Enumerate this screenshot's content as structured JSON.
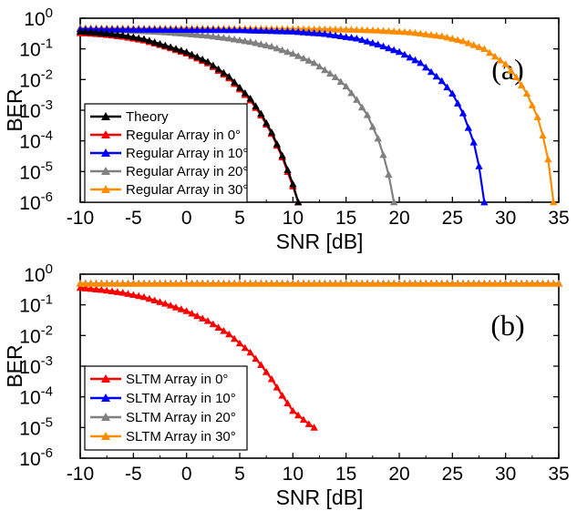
{
  "chart_data": [
    {
      "type": "line",
      "panel_label": "(a)",
      "xlabel": "SNR [dB]",
      "ylabel": "BER",
      "xlim": [
        -10,
        35
      ],
      "ylim": [
        1e-06,
        1
      ],
      "yscale": "log",
      "x_ticks": [
        "-10",
        "-5",
        "0",
        "5",
        "10",
        "15",
        "20",
        "25",
        "30",
        "35"
      ],
      "y_ticks": [
        {
          "base": "10",
          "exp": "0"
        },
        {
          "base": "10",
          "exp": "-1"
        },
        {
          "base": "10",
          "exp": "-2"
        },
        {
          "base": "10",
          "exp": "-3"
        },
        {
          "base": "10",
          "exp": "-4"
        },
        {
          "base": "10",
          "exp": "-5"
        },
        {
          "base": "10",
          "exp": "-6"
        }
      ],
      "legend_position": "bottom-left",
      "grid": false,
      "series": [
        {
          "name": "Theory",
          "color": "#000000",
          "x": [
            -10,
            -8,
            -6,
            -4,
            -2,
            0,
            2,
            4,
            6,
            7,
            8,
            9,
            10,
            10.5
          ],
          "y": [
            0.37,
            0.33,
            0.28,
            0.21,
            0.13,
            0.079,
            0.038,
            0.0125,
            0.0024,
            0.00077,
            0.00019,
            3.3e-05,
            3.9e-06,
            1e-06
          ]
        },
        {
          "name": "Regular Array in 0°",
          "color": "#ff0000",
          "x": [
            -10,
            -8,
            -6,
            -4,
            -2,
            0,
            2,
            4,
            6,
            7,
            8,
            9,
            10,
            10.5
          ],
          "y": [
            0.33,
            0.3,
            0.25,
            0.19,
            0.12,
            0.071,
            0.034,
            0.011,
            0.0021,
            0.00068,
            0.00017,
            2.9e-05,
            3.3e-06,
            1e-06
          ]
        },
        {
          "name": "Regular Array in 10°",
          "color": "#0000ff",
          "x": [
            -10,
            -5,
            0,
            5,
            10,
            13,
            16,
            18,
            20,
            22,
            24,
            25,
            26,
            27,
            27.5,
            28
          ],
          "y": [
            0.44,
            0.43,
            0.42,
            0.41,
            0.37,
            0.31,
            0.22,
            0.14,
            0.08,
            0.035,
            0.009,
            0.0035,
            0.0008,
            9e-05,
            1.5e-05,
            1e-06
          ]
        },
        {
          "name": "Regular Array in 20°",
          "color": "#808080",
          "x": [
            -10,
            -8,
            -6,
            -4,
            -2,
            0,
            2,
            4,
            6,
            8,
            10,
            12,
            14,
            15,
            16,
            17,
            18,
            18.5,
            19,
            19.5
          ],
          "y": [
            0.45,
            0.43,
            0.41,
            0.38,
            0.35,
            0.31,
            0.27,
            0.22,
            0.17,
            0.12,
            0.07,
            0.035,
            0.012,
            0.006,
            0.0022,
            0.0007,
            0.00012,
            3.5e-05,
            8e-06,
            1e-06
          ]
        },
        {
          "name": "Regular Array in 30°",
          "color": "#ff8c00",
          "x": [
            -10,
            -5,
            0,
            5,
            10,
            15,
            18,
            21,
            24,
            26,
            28,
            30,
            31,
            32,
            33,
            33.5,
            34,
            34.5
          ],
          "y": [
            0.48,
            0.47,
            0.47,
            0.46,
            0.45,
            0.43,
            0.4,
            0.35,
            0.26,
            0.18,
            0.1,
            0.032,
            0.012,
            0.0035,
            0.0006,
            0.00015,
            2.5e-05,
            1e-06
          ]
        }
      ]
    },
    {
      "type": "line",
      "panel_label": "(b)",
      "xlabel": "SNR [dB]",
      "ylabel": "BER",
      "xlim": [
        -10,
        35
      ],
      "ylim": [
        1e-06,
        1
      ],
      "yscale": "log",
      "x_ticks": [
        "-10",
        "-5",
        "0",
        "5",
        "10",
        "15",
        "20",
        "25",
        "30",
        "35"
      ],
      "y_ticks": [
        {
          "base": "10",
          "exp": "0"
        },
        {
          "base": "10",
          "exp": "-1"
        },
        {
          "base": "10",
          "exp": "-2"
        },
        {
          "base": "10",
          "exp": "-3"
        },
        {
          "base": "10",
          "exp": "-4"
        },
        {
          "base": "10",
          "exp": "-5"
        },
        {
          "base": "10",
          "exp": "-6"
        }
      ],
      "legend_position": "bottom-left",
      "grid": false,
      "series": [
        {
          "name": "SLTM Array in 0°",
          "color": "#ff0000",
          "x": [
            -10,
            -8,
            -6,
            -4,
            -2,
            0,
            2,
            4,
            6,
            7,
            8,
            9,
            10,
            11,
            11.5,
            12
          ],
          "y": [
            0.36,
            0.31,
            0.25,
            0.18,
            0.11,
            0.063,
            0.03,
            0.011,
            0.0028,
            0.0011,
            0.00038,
            0.00011,
            3.5e-05,
            1.8e-05,
            1.3e-05,
            1e-05
          ]
        },
        {
          "name": "SLTM Array in 10°",
          "color": "#0000ff",
          "x": [
            -10,
            35
          ],
          "y": [
            0.5,
            0.5
          ]
        },
        {
          "name": "SLTM Array in 20°",
          "color": "#808080",
          "x": [
            -10,
            35
          ],
          "y": [
            0.5,
            0.5
          ]
        },
        {
          "name": "SLTM Array in 30°",
          "color": "#ff8c00",
          "x": [
            -10,
            35
          ],
          "y": [
            0.49,
            0.49
          ]
        }
      ]
    }
  ]
}
